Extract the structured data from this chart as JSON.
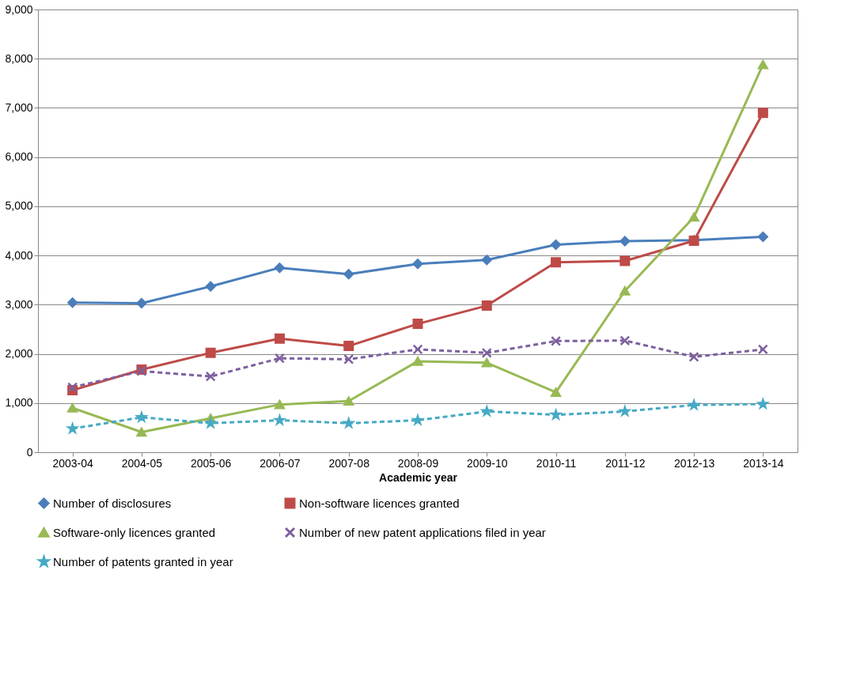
{
  "chart_data": {
    "type": "line",
    "xlabel": "Academic year",
    "categories": [
      "2003-04",
      "2004-05",
      "2005-06",
      "2006-07",
      "2007-08",
      "2008-09",
      "2009-10",
      "2010-11",
      "2011-12",
      "2012-13",
      "2013-14"
    ],
    "ylim": [
      0,
      9000
    ],
    "yticks": [
      {
        "value": 0,
        "label": "0"
      },
      {
        "value": 1000,
        "label": "1,000"
      },
      {
        "value": 2000,
        "label": "2,000"
      },
      {
        "value": 3000,
        "label": "3,000"
      },
      {
        "value": 4000,
        "label": "4,000"
      },
      {
        "value": 5000,
        "label": "5,000"
      },
      {
        "value": 6000,
        "label": "6,000"
      },
      {
        "value": 7000,
        "label": "7,000"
      },
      {
        "value": 8000,
        "label": "8,000"
      },
      {
        "value": 9000,
        "label": "9,000"
      }
    ],
    "grid": "y",
    "legend": "bottom",
    "series": [
      {
        "name": "Number of disclosures",
        "color": "#4a7ebb",
        "marker": "diamond",
        "line_style": "solid",
        "values": [
          3040,
          3030,
          3370,
          3750,
          3620,
          3830,
          3910,
          4220,
          4290,
          4310,
          4380
        ]
      },
      {
        "name": "Non-software licences granted",
        "color": "#be4b48",
        "marker": "square",
        "line_style": "solid",
        "values": [
          1260,
          1680,
          2020,
          2310,
          2160,
          2610,
          2980,
          3860,
          3890,
          4300,
          6900
        ]
      },
      {
        "name": "Software-only licences granted",
        "color": "#98b954",
        "marker": "triangle",
        "line_style": "solid",
        "values": [
          900,
          410,
          690,
          970,
          1040,
          1850,
          1820,
          1220,
          3280,
          4780,
          7880
        ]
      },
      {
        "name": "Number of new patent applications filed in year",
        "color": "#7d60a0",
        "marker": "cross",
        "line_style": "dashed",
        "values": [
          1320,
          1650,
          1540,
          1910,
          1890,
          2090,
          2020,
          2260,
          2270,
          1940,
          2090
        ]
      },
      {
        "name": "Number of patents granted in year",
        "color": "#46aac5",
        "marker": "star",
        "line_style": "dashed",
        "values": [
          480,
          710,
          590,
          650,
          590,
          650,
          830,
          760,
          830,
          960,
          980
        ]
      }
    ]
  }
}
